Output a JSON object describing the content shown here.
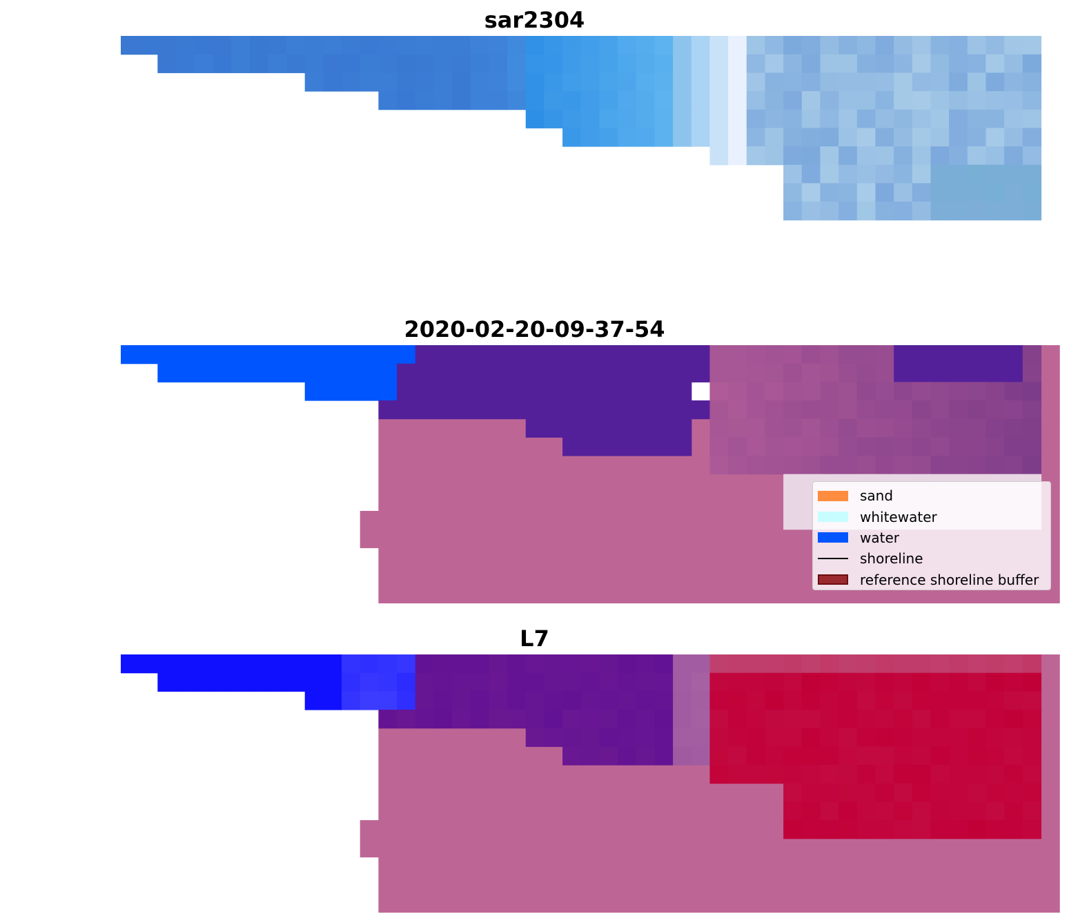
{
  "panels": [
    {
      "title": "sar2304"
    },
    {
      "title": "2020-02-20-09-37-54"
    },
    {
      "title": "L7"
    }
  ],
  "legend": {
    "items": [
      {
        "label": "sand",
        "color": "#ff8c3f",
        "kind": "patch"
      },
      {
        "label": "whitewater",
        "color": "#c8fdff",
        "kind": "patch"
      },
      {
        "label": "water",
        "color": "#0055ff",
        "kind": "patch"
      },
      {
        "label": "shoreline",
        "color": "#000000",
        "kind": "line"
      },
      {
        "label": "reference shoreline buffer",
        "color": "#9b2a2e",
        "kind": "patch",
        "edge": "#6a0e10"
      }
    ]
  },
  "colors": {
    "buffer_mask": "#bd6696",
    "water": "#0055ff",
    "sar_deep": "#3a78d2",
    "sar_light": "#f2f6ff",
    "class_dark": "#54209a",
    "l7_blue": "#1010ff",
    "l7_purple": "#6a1892",
    "l7_red": "#c20038"
  }
}
